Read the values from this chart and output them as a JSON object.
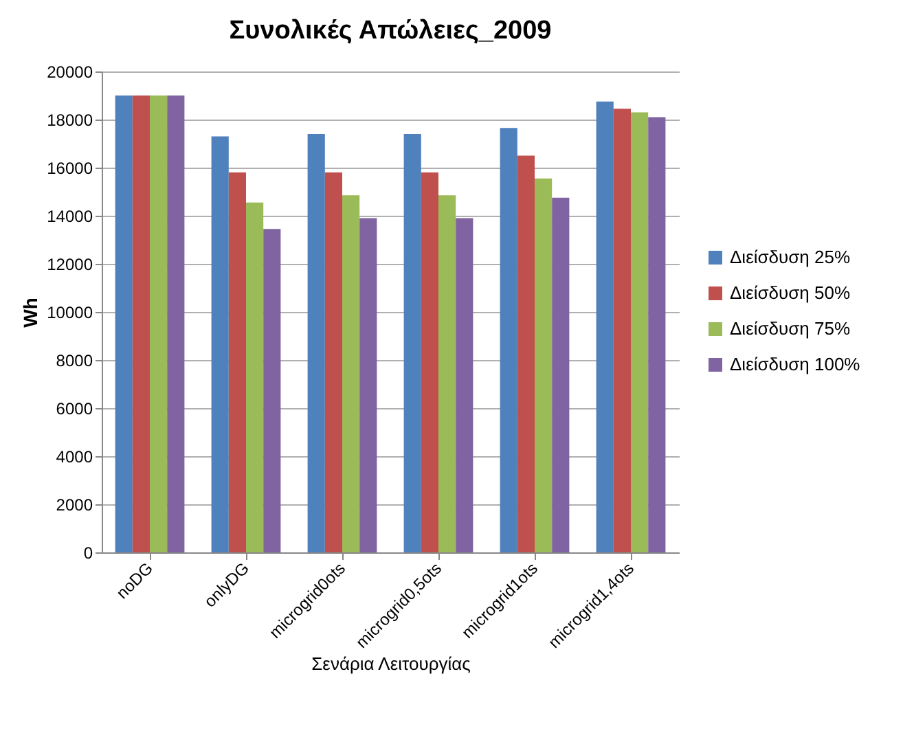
{
  "chart_data": {
    "type": "bar",
    "title": "Συνολικές Απώλειες_2009",
    "xlabel": "Σενάρια Λειτουργίας",
    "ylabel": "Wh",
    "categories": [
      "noDG",
      "onlyDG",
      "microgrid0ots",
      "microgrid0,5ots",
      "microgrid1ots",
      "microgrid1,4ots"
    ],
    "series": [
      {
        "name": "Διείσδυση 25%",
        "color": "#4f81bd",
        "values": [
          19000,
          17300,
          17400,
          17400,
          17650,
          18750
        ]
      },
      {
        "name": "Διείσδυση 50%",
        "color": "#c0504d",
        "values": [
          19000,
          15800,
          15800,
          15800,
          16500,
          18450
        ]
      },
      {
        "name": "Διείσδυση 75%",
        "color": "#9bbb59",
        "values": [
          19000,
          14550,
          14850,
          14850,
          15550,
          18300
        ]
      },
      {
        "name": "Διείσδυση 100%",
        "color": "#8064a2",
        "values": [
          19000,
          13450,
          13900,
          13900,
          14750,
          18100
        ]
      }
    ],
    "ylim": [
      0,
      20000
    ],
    "yticks": [
      0,
      2000,
      4000,
      6000,
      8000,
      10000,
      12000,
      14000,
      16000,
      18000,
      20000
    ],
    "grid": "y",
    "legend": "right"
  }
}
